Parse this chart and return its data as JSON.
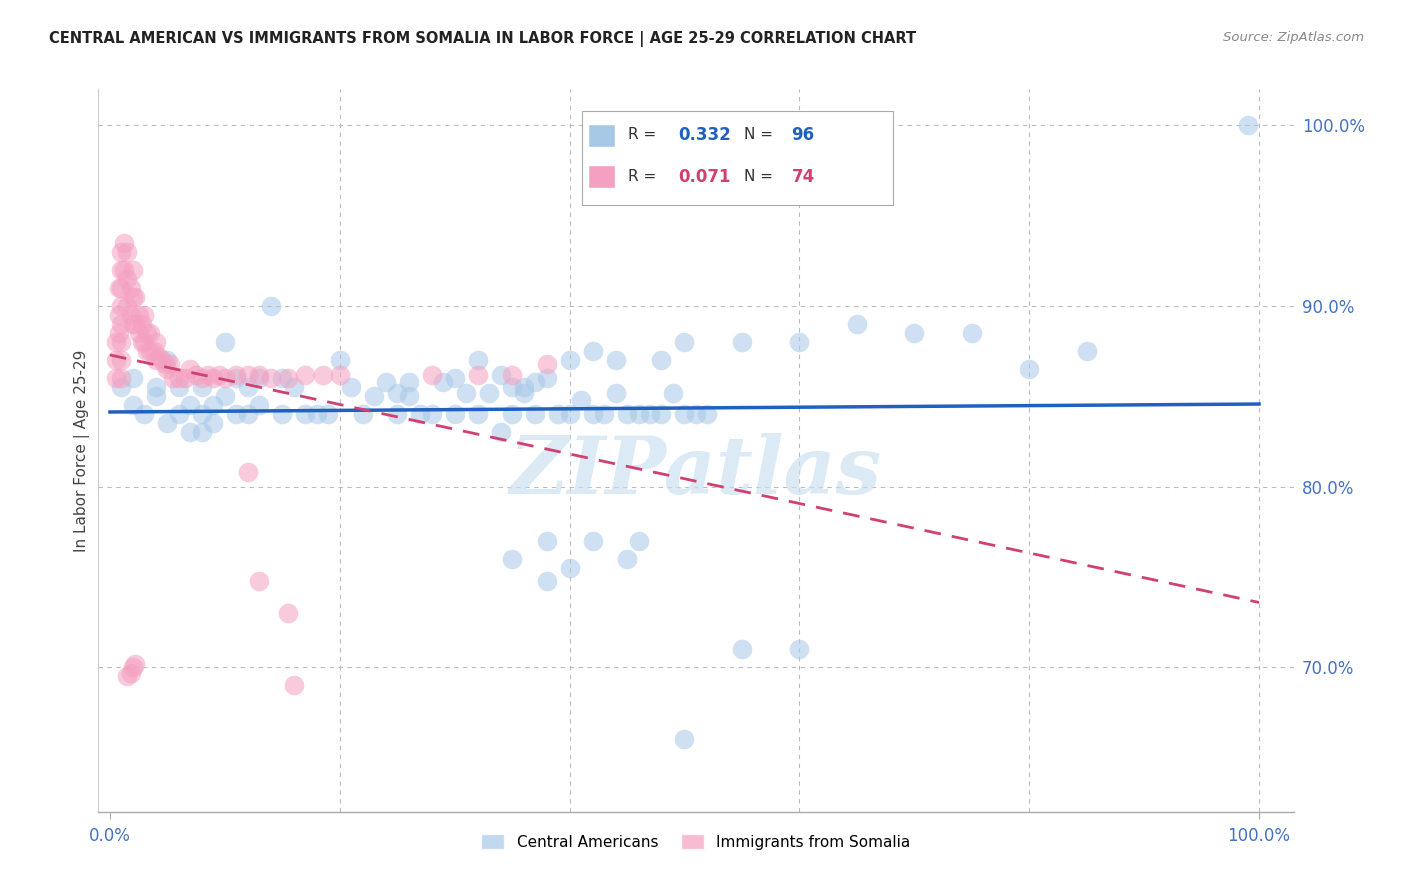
{
  "title": "CENTRAL AMERICAN VS IMMIGRANTS FROM SOMALIA IN LABOR FORCE | AGE 25-29 CORRELATION CHART",
  "source": "Source: ZipAtlas.com",
  "ylabel": "In Labor Force | Age 25-29",
  "blue_R": 0.332,
  "blue_N": 96,
  "pink_R": 0.071,
  "pink_N": 74,
  "blue_color": "#a8c8e8",
  "pink_color": "#f4a0c0",
  "blue_line_color": "#2060c0",
  "pink_line_color": "#d04070",
  "watermark": "ZIPatlas",
  "blue_scatter_x": [
    0.01,
    0.02,
    0.02,
    0.03,
    0.04,
    0.04,
    0.05,
    0.05,
    0.06,
    0.06,
    0.07,
    0.07,
    0.08,
    0.08,
    0.08,
    0.09,
    0.09,
    0.1,
    0.1,
    0.11,
    0.11,
    0.12,
    0.12,
    0.13,
    0.13,
    0.14,
    0.15,
    0.15,
    0.16,
    0.17,
    0.18,
    0.19,
    0.2,
    0.21,
    0.22,
    0.23,
    0.24,
    0.25,
    0.26,
    0.27,
    0.28,
    0.29,
    0.3,
    0.31,
    0.32,
    0.33,
    0.34,
    0.35,
    0.36,
    0.37,
    0.38,
    0.38,
    0.39,
    0.4,
    0.41,
    0.42,
    0.43,
    0.44,
    0.45,
    0.46,
    0.47,
    0.48,
    0.49,
    0.5,
    0.51,
    0.52,
    0.35,
    0.36,
    0.25,
    0.26,
    0.37,
    0.4,
    0.42,
    0.3,
    0.32,
    0.34,
    0.44,
    0.48,
    0.5,
    0.55,
    0.6,
    0.65,
    0.7,
    0.75,
    0.8,
    0.85,
    0.55,
    0.6,
    0.4,
    0.45,
    0.35,
    0.38,
    0.42,
    0.46,
    0.5,
    0.99
  ],
  "blue_scatter_y": [
    0.855,
    0.845,
    0.86,
    0.84,
    0.85,
    0.855,
    0.835,
    0.87,
    0.84,
    0.855,
    0.83,
    0.845,
    0.83,
    0.84,
    0.855,
    0.835,
    0.845,
    0.88,
    0.85,
    0.84,
    0.86,
    0.84,
    0.855,
    0.845,
    0.86,
    0.9,
    0.84,
    0.86,
    0.855,
    0.84,
    0.84,
    0.84,
    0.87,
    0.855,
    0.84,
    0.85,
    0.858,
    0.84,
    0.85,
    0.84,
    0.84,
    0.858,
    0.84,
    0.852,
    0.84,
    0.852,
    0.83,
    0.84,
    0.852,
    0.84,
    0.748,
    0.86,
    0.84,
    0.84,
    0.848,
    0.84,
    0.84,
    0.852,
    0.84,
    0.84,
    0.84,
    0.84,
    0.852,
    0.84,
    0.84,
    0.84,
    0.855,
    0.855,
    0.852,
    0.858,
    0.858,
    0.87,
    0.875,
    0.86,
    0.87,
    0.862,
    0.87,
    0.87,
    0.88,
    0.88,
    0.88,
    0.89,
    0.885,
    0.885,
    0.865,
    0.875,
    0.71,
    0.71,
    0.755,
    0.76,
    0.76,
    0.77,
    0.77,
    0.77,
    0.66,
    1.0
  ],
  "pink_scatter_x": [
    0.005,
    0.005,
    0.005,
    0.008,
    0.008,
    0.008,
    0.01,
    0.01,
    0.01,
    0.01,
    0.01,
    0.01,
    0.01,
    0.01,
    0.012,
    0.012,
    0.015,
    0.015,
    0.015,
    0.018,
    0.018,
    0.02,
    0.02,
    0.02,
    0.022,
    0.022,
    0.025,
    0.025,
    0.028,
    0.028,
    0.03,
    0.03,
    0.032,
    0.032,
    0.035,
    0.035,
    0.038,
    0.04,
    0.04,
    0.043,
    0.045,
    0.048,
    0.05,
    0.052,
    0.055,
    0.06,
    0.065,
    0.07,
    0.075,
    0.08,
    0.085,
    0.09,
    0.095,
    0.1,
    0.11,
    0.12,
    0.13,
    0.14,
    0.155,
    0.17,
    0.185,
    0.2,
    0.13,
    0.16,
    0.28,
    0.32,
    0.35,
    0.38,
    0.12,
    0.155,
    0.015,
    0.018,
    0.02,
    0.022
  ],
  "pink_scatter_y": [
    0.86,
    0.87,
    0.88,
    0.885,
    0.895,
    0.91,
    0.86,
    0.87,
    0.88,
    0.89,
    0.9,
    0.91,
    0.92,
    0.93,
    0.92,
    0.935,
    0.9,
    0.915,
    0.93,
    0.895,
    0.91,
    0.89,
    0.905,
    0.92,
    0.89,
    0.905,
    0.885,
    0.895,
    0.88,
    0.89,
    0.88,
    0.895,
    0.875,
    0.885,
    0.875,
    0.885,
    0.875,
    0.87,
    0.88,
    0.872,
    0.87,
    0.868,
    0.865,
    0.868,
    0.86,
    0.86,
    0.86,
    0.865,
    0.862,
    0.86,
    0.862,
    0.86,
    0.862,
    0.86,
    0.862,
    0.862,
    0.862,
    0.86,
    0.86,
    0.862,
    0.862,
    0.862,
    0.748,
    0.69,
    0.862,
    0.862,
    0.862,
    0.868,
    0.808,
    0.73,
    0.695,
    0.697,
    0.7,
    0.702
  ],
  "xlim": [
    -0.01,
    1.03
  ],
  "ylim": [
    0.62,
    1.02
  ],
  "yticks": [
    0.7,
    0.8,
    0.9,
    1.0
  ],
  "ytick_labels": [
    "70.0%",
    "80.0%",
    "90.0%",
    "100.0%"
  ],
  "xticks": [
    0.0,
    1.0
  ],
  "xtick_labels": [
    "0.0%",
    "100.0%"
  ],
  "grid_color": "#bbbbbb",
  "background_color": "#ffffff",
  "title_fontsize": 11,
  "tick_color": "#4472c4",
  "legend_label_blue": "Central Americans",
  "legend_label_pink": "Immigrants from Somalia"
}
